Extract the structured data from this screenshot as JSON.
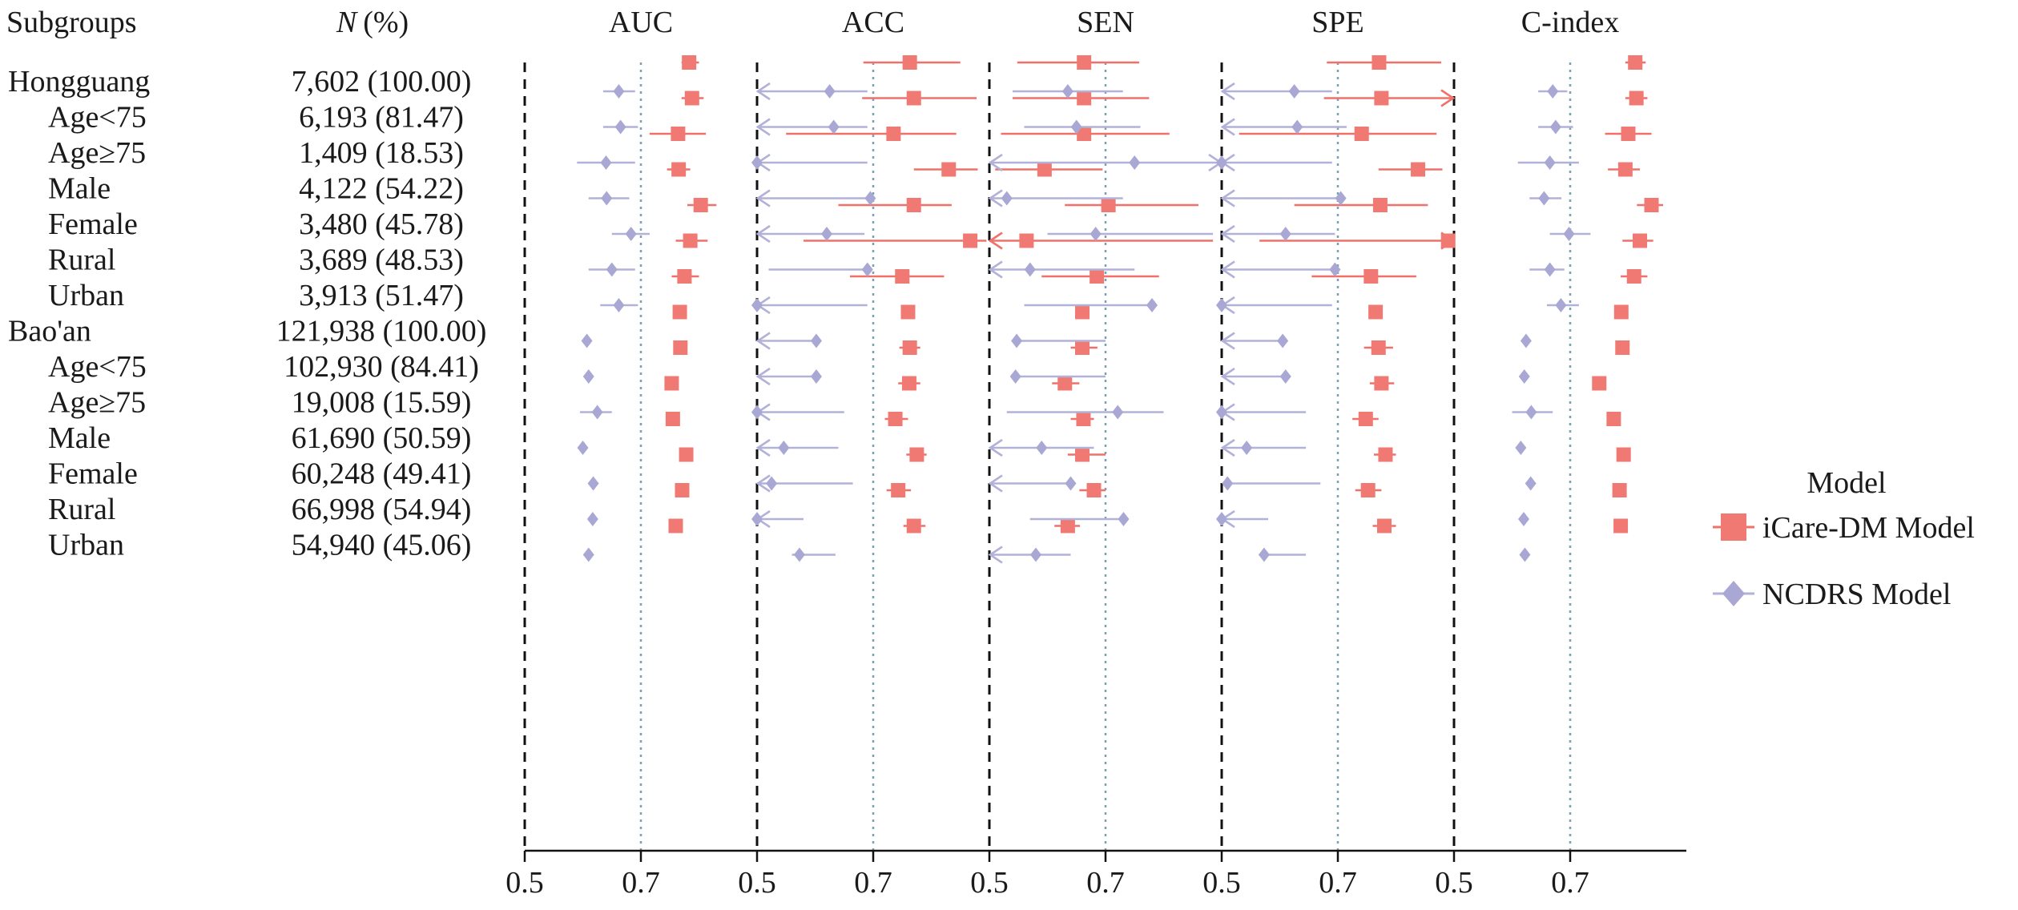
{
  "chart_data": {
    "type": "forest",
    "header": {
      "subgroups": "Subgroups",
      "n_symbol": "N",
      "n_unit": "(%)"
    },
    "panels": [
      "AUC",
      "ACC",
      "SEN",
      "SPE",
      "C-index"
    ],
    "tick_labels": [
      "0.5",
      "0.7"
    ],
    "xlim": [
      0.5,
      0.9
    ],
    "legend": {
      "title": "Model",
      "placement": "right",
      "entries": [
        {
          "name": "iCare-DM Model",
          "marker": "square",
          "color": "#F07A73",
          "line": "#F0716A"
        },
        {
          "name": "NCDRS Model",
          "marker": "diamond",
          "color": "#A9A8D4",
          "line": "#B2B1D8"
        }
      ]
    },
    "rows": [
      {
        "label": "Hongguang",
        "indent": false,
        "n": "7,602 (100.00)"
      },
      {
        "label": "Age<75",
        "indent": true,
        "n": "6,193 (81.47)"
      },
      {
        "label": "Age≥75",
        "indent": true,
        "n": "1,409 (18.53)"
      },
      {
        "label": "Male",
        "indent": true,
        "n": "4,122 (54.22)"
      },
      {
        "label": "Female",
        "indent": true,
        "n": "3,480 (45.78)"
      },
      {
        "label": "Rural",
        "indent": true,
        "n": "3,689 (48.53)"
      },
      {
        "label": "Urban",
        "indent": true,
        "n": "3,913 (51.47)"
      },
      {
        "label": "Bao'an",
        "indent": false,
        "n": "121,938 (100.00)"
      },
      {
        "label": "Age<75",
        "indent": true,
        "n": "102,930 (84.41)"
      },
      {
        "label": "Age≥75",
        "indent": true,
        "n": "19,008 (15.59)"
      },
      {
        "label": "Male",
        "indent": true,
        "n": "61,690 (50.59)"
      },
      {
        "label": "Female",
        "indent": true,
        "n": "60,248 (49.41)"
      },
      {
        "label": "Rural",
        "indent": true,
        "n": "66,998 (54.94)"
      },
      {
        "label": "Urban",
        "indent": true,
        "n": "54,940 (45.06)"
      }
    ],
    "series": [
      {
        "name": "iCare-DM Model",
        "values": [
          [
            [
              0.783,
              0.77,
              0.8
            ],
            [
              0.763,
              0.683,
              0.85
            ],
            [
              0.663,
              0.548,
              0.758
            ],
            [
              0.771,
              0.681,
              0.878
            ],
            [
              0.812,
              0.795,
              0.83
            ]
          ],
          [
            [
              0.788,
              0.77,
              0.808
            ],
            [
              0.77,
              0.681,
              0.878
            ],
            [
              0.663,
              0.54,
              0.775
            ],
            [
              0.775,
              0.676,
              0.9
            ],
            [
              0.814,
              0.795,
              0.833
            ]
          ],
          [
            [
              0.764,
              0.715,
              0.812
            ],
            [
              0.735,
              0.55,
              0.843
            ],
            [
              0.663,
              0.52,
              0.81
            ],
            [
              0.741,
              0.53,
              0.87
            ],
            [
              0.8,
              0.76,
              0.84
            ]
          ],
          [
            [
              0.765,
              0.745,
              0.785
            ],
            [
              0.83,
              0.77,
              0.88
            ],
            [
              0.595,
              0.51,
              0.695
            ],
            [
              0.838,
              0.77,
              0.88
            ],
            [
              0.795,
              0.765,
              0.82
            ]
          ],
          [
            [
              0.803,
              0.78,
              0.83
            ],
            [
              0.77,
              0.64,
              0.835
            ],
            [
              0.705,
              0.63,
              0.86
            ],
            [
              0.773,
              0.625,
              0.855
            ],
            [
              0.84,
              0.815,
              0.86
            ]
          ],
          [
            [
              0.785,
              0.76,
              0.815
            ],
            [
              0.867,
              0.58,
              0.895
            ],
            [
              0.564,
              0.5,
              0.885
            ],
            [
              0.89,
              0.565,
              0.9
            ],
            [
              0.82,
              0.79,
              0.843
            ]
          ],
          [
            [
              0.775,
              0.753,
              0.8
            ],
            [
              0.75,
              0.66,
              0.822
            ],
            [
              0.685,
              0.59,
              0.792
            ],
            [
              0.757,
              0.655,
              0.835
            ],
            [
              0.81,
              0.787,
              0.833
            ]
          ],
          [
            [
              0.767,
              0.767,
              0.767
            ],
            [
              0.76,
              0.76,
              0.76
            ],
            [
              0.66,
              0.66,
              0.66
            ],
            [
              0.765,
              0.765,
              0.765
            ],
            [
              0.788,
              0.788,
              0.788
            ]
          ],
          [
            [
              0.768,
              0.768,
              0.768
            ],
            [
              0.763,
              0.745,
              0.781
            ],
            [
              0.66,
              0.64,
              0.686
            ],
            [
              0.77,
              0.745,
              0.795
            ],
            [
              0.79,
              0.79,
              0.79
            ]
          ],
          [
            [
              0.753,
              0.753,
              0.753
            ],
            [
              0.762,
              0.743,
              0.781
            ],
            [
              0.63,
              0.608,
              0.655
            ],
            [
              0.775,
              0.755,
              0.797
            ],
            [
              0.75,
              0.75,
              0.75
            ]
          ],
          [
            [
              0.755,
              0.755,
              0.755
            ],
            [
              0.738,
              0.72,
              0.76
            ],
            [
              0.662,
              0.64,
              0.68
            ],
            [
              0.748,
              0.725,
              0.77
            ],
            [
              0.775,
              0.775,
              0.775
            ]
          ],
          [
            [
              0.778,
              0.778,
              0.778
            ],
            [
              0.775,
              0.757,
              0.792
            ],
            [
              0.66,
              0.635,
              0.7
            ],
            [
              0.782,
              0.762,
              0.8
            ],
            [
              0.792,
              0.792,
              0.792
            ]
          ],
          [
            [
              0.771,
              0.771,
              0.771
            ],
            [
              0.743,
              0.723,
              0.765
            ],
            [
              0.68,
              0.655,
              0.7
            ],
            [
              0.752,
              0.73,
              0.775
            ],
            [
              0.785,
              0.785,
              0.785
            ]
          ],
          [
            [
              0.76,
              0.76,
              0.76
            ],
            [
              0.77,
              0.752,
              0.79
            ],
            [
              0.635,
              0.612,
              0.656
            ],
            [
              0.78,
              0.76,
              0.8
            ],
            [
              0.787,
              0.787,
              0.787
            ]
          ]
        ]
      },
      {
        "name": "NCDRS Model",
        "values": [
          [
            [
              0.662,
              0.635,
              0.69
            ],
            [
              0.625,
              0.5,
              0.69
            ],
            [
              0.635,
              0.54,
              0.73
            ],
            [
              0.625,
              0.5,
              0.69
            ],
            [
              0.67,
              0.645,
              0.695
            ]
          ],
          [
            [
              0.665,
              0.635,
              0.695
            ],
            [
              0.632,
              0.5,
              0.69
            ],
            [
              0.65,
              0.56,
              0.76
            ],
            [
              0.63,
              0.5,
              0.715
            ],
            [
              0.675,
              0.645,
              0.705
            ]
          ],
          [
            [
              0.64,
              0.59,
              0.69
            ],
            [
              0.5,
              0.5,
              0.69
            ],
            [
              0.75,
              0.5,
              0.9
            ],
            [
              0.5,
              0.5,
              0.69
            ],
            [
              0.665,
              0.61,
              0.715
            ]
          ],
          [
            [
              0.641,
              0.61,
              0.68
            ],
            [
              0.695,
              0.5,
              0.695
            ],
            [
              0.53,
              0.5,
              0.73
            ],
            [
              0.705,
              0.5,
              0.705
            ],
            [
              0.655,
              0.63,
              0.685
            ]
          ],
          [
            [
              0.683,
              0.65,
              0.715
            ],
            [
              0.62,
              0.5,
              0.685
            ],
            [
              0.683,
              0.6,
              0.885
            ],
            [
              0.61,
              0.5,
              0.695
            ],
            [
              0.698,
              0.665,
              0.735
            ]
          ],
          [
            [
              0.65,
              0.61,
              0.69
            ],
            [
              0.69,
              0.52,
              0.69
            ],
            [
              0.57,
              0.5,
              0.75
            ],
            [
              0.695,
              0.5,
              0.7
            ],
            [
              0.665,
              0.63,
              0.69
            ]
          ],
          [
            [
              0.662,
              0.63,
              0.695
            ],
            [
              0.5,
              0.5,
              0.69
            ],
            [
              0.78,
              0.56,
              0.785
            ],
            [
              0.5,
              0.5,
              0.69
            ],
            [
              0.684,
              0.66,
              0.715
            ]
          ],
          [
            [
              0.607,
              0.607,
              0.607
            ],
            [
              0.602,
              0.5,
              0.602
            ],
            [
              0.547,
              0.545,
              0.7
            ],
            [
              0.605,
              0.5,
              0.605
            ],
            [
              0.624,
              0.624,
              0.624
            ]
          ],
          [
            [
              0.61,
              0.61,
              0.61
            ],
            [
              0.602,
              0.5,
              0.602
            ],
            [
              0.545,
              0.54,
              0.7
            ],
            [
              0.61,
              0.5,
              0.61
            ],
            [
              0.621,
              0.621,
              0.621
            ]
          ],
          [
            [
              0.625,
              0.595,
              0.65
            ],
            [
              0.5,
              0.5,
              0.65
            ],
            [
              0.721,
              0.53,
              0.8
            ],
            [
              0.5,
              0.5,
              0.645
            ],
            [
              0.633,
              0.6,
              0.67
            ]
          ],
          [
            [
              0.6,
              0.6,
              0.6
            ],
            [
              0.546,
              0.5,
              0.64
            ],
            [
              0.59,
              0.5,
              0.68
            ],
            [
              0.543,
              0.5,
              0.645
            ],
            [
              0.615,
              0.615,
              0.615
            ]
          ],
          [
            [
              0.618,
              0.618,
              0.618
            ],
            [
              0.525,
              0.5,
              0.665
            ],
            [
              0.64,
              0.5,
              0.64
            ],
            [
              0.51,
              0.51,
              0.67
            ],
            [
              0.632,
              0.632,
              0.632
            ]
          ],
          [
            [
              0.617,
              0.617,
              0.617
            ],
            [
              0.5,
              0.5,
              0.58
            ],
            [
              0.731,
              0.57,
              0.731
            ],
            [
              0.5,
              0.5,
              0.58
            ],
            [
              0.62,
              0.62,
              0.62
            ]
          ],
          [
            [
              0.61,
              0.61,
              0.61
            ],
            [
              0.573,
              0.56,
              0.635
            ],
            [
              0.58,
              0.5,
              0.64
            ],
            [
              0.573,
              0.57,
              0.645
            ],
            [
              0.622,
              0.622,
              0.622
            ]
          ]
        ]
      }
    ]
  }
}
